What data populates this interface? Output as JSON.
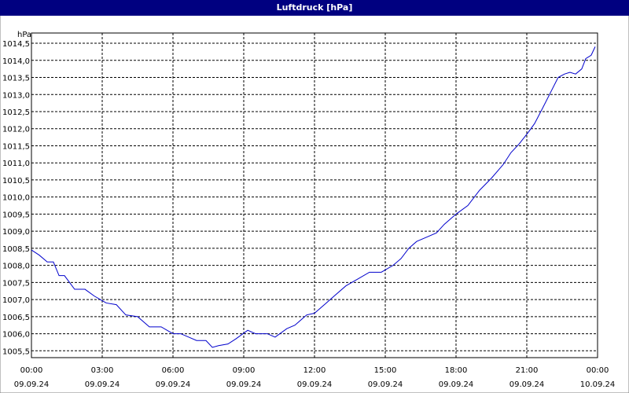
{
  "chart_data": {
    "type": "line",
    "title": "Luftdruck [hPa]",
    "y_unit": "hPa",
    "x": [
      0,
      0.33,
      0.67,
      0.93,
      1.17,
      1.4,
      1.83,
      2.27,
      2.67,
      3.17,
      3.6,
      4.0,
      4.5,
      5.0,
      5.5,
      6.0,
      6.33,
      6.67,
      7.0,
      7.4,
      7.67,
      7.93,
      8.33,
      8.67,
      9.17,
      9.5,
      10.0,
      10.33,
      10.83,
      11.17,
      11.67,
      12.0,
      12.5,
      12.83,
      13.33,
      13.83,
      14.33,
      14.83,
      15.33,
      15.67,
      16.0,
      16.33,
      16.67,
      17.17,
      17.5,
      18.0,
      18.5,
      19.0,
      19.5,
      20.0,
      20.33,
      20.67,
      21.07,
      21.33,
      21.67,
      22.0,
      22.33,
      22.6,
      22.83,
      23.07,
      23.33,
      23.5,
      23.73,
      23.9
    ],
    "series": [
      {
        "color": "#0000cc",
        "values": [
          1008.45,
          1008.3,
          1008.1,
          1008.1,
          1007.7,
          1007.7,
          1007.3,
          1007.3,
          1007.1,
          1006.9,
          1006.85,
          1006.55,
          1006.5,
          1006.2,
          1006.2,
          1006.0,
          1006.0,
          1005.9,
          1005.8,
          1005.8,
          1005.6,
          1005.65,
          1005.7,
          1005.85,
          1006.1,
          1006.0,
          1006.0,
          1005.9,
          1006.15,
          1006.25,
          1006.55,
          1006.6,
          1006.9,
          1007.1,
          1007.4,
          1007.6,
          1007.8,
          1007.8,
          1008.0,
          1008.2,
          1008.5,
          1008.7,
          1008.8,
          1008.95,
          1009.2,
          1009.5,
          1009.75,
          1010.2,
          1010.55,
          1010.95,
          1011.3,
          1011.55,
          1011.9,
          1012.15,
          1012.6,
          1013.05,
          1013.5,
          1013.6,
          1013.65,
          1013.6,
          1013.75,
          1014.05,
          1014.15,
          1014.4
        ]
      }
    ],
    "xlim": [
      0,
      24
    ],
    "xticks": [
      {
        "value": 0,
        "label": "00:00",
        "sublabel": "09.09.24"
      },
      {
        "value": 3,
        "label": "03:00",
        "sublabel": "09.09.24"
      },
      {
        "value": 6,
        "label": "06:00",
        "sublabel": "09.09.24"
      },
      {
        "value": 9,
        "label": "09:00",
        "sublabel": "09.09.24"
      },
      {
        "value": 12,
        "label": "12:00",
        "sublabel": "09.09.24"
      },
      {
        "value": 15,
        "label": "15:00",
        "sublabel": "09.09.24"
      },
      {
        "value": 18,
        "label": "18:00",
        "sublabel": "09.09.24"
      },
      {
        "value": 21,
        "label": "21:00",
        "sublabel": "09.09.24"
      },
      {
        "value": 24,
        "label": "00:00",
        "sublabel": "10.09.24"
      }
    ],
    "ylim": [
      1005.3,
      1014.8
    ],
    "yticks": [
      {
        "value": 1005.5,
        "label": "1005,5"
      },
      {
        "value": 1006,
        "label": "1006,0"
      },
      {
        "value": 1006.5,
        "label": "1006,5"
      },
      {
        "value": 1007,
        "label": "1007,0"
      },
      {
        "value": 1007.5,
        "label": "1007,5"
      },
      {
        "value": 1008,
        "label": "1008,0"
      },
      {
        "value": 1008.5,
        "label": "1008,5"
      },
      {
        "value": 1009,
        "label": "1009,0"
      },
      {
        "value": 1009.5,
        "label": "1009,5"
      },
      {
        "value": 1010,
        "label": "1010,0"
      },
      {
        "value": 1010.5,
        "label": "1010,5"
      },
      {
        "value": 1011,
        "label": "1011,0"
      },
      {
        "value": 1011.5,
        "label": "1011,5"
      },
      {
        "value": 1012,
        "label": "1012,0"
      },
      {
        "value": 1012.5,
        "label": "1012,5"
      },
      {
        "value": 1013,
        "label": "1013,0"
      },
      {
        "value": 1013.5,
        "label": "1013,5"
      },
      {
        "value": 1014,
        "label": "1014,0"
      },
      {
        "value": 1014.5,
        "label": "1014,5"
      }
    ],
    "grid": true
  }
}
